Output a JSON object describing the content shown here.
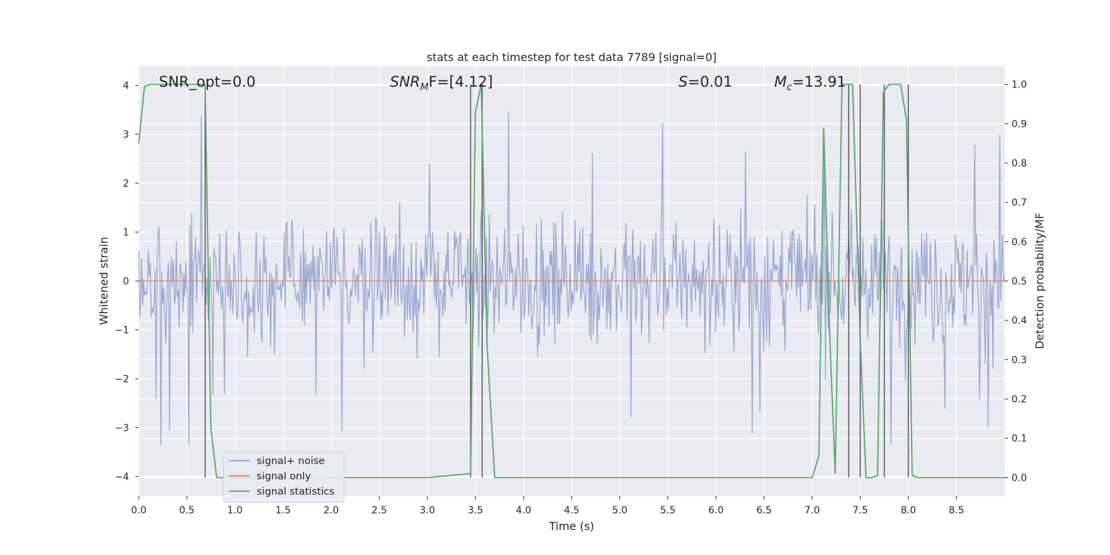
{
  "chart_data": {
    "type": "line",
    "title": "stats at each timestep for test data 7789 [signal=0]",
    "xlabel": "Time (s)",
    "ylabel_left": "Whitened strain",
    "ylabel_right": "Detection probability/MF",
    "xlim": [
      0.0,
      9.0
    ],
    "ylim_left": [
      -4.4,
      4.4
    ],
    "ylim_right": [
      -0.047,
      1.047
    ],
    "x_ticks": [
      "0.0",
      "0.5",
      "1.0",
      "1.5",
      "2.0",
      "2.5",
      "3.0",
      "3.5",
      "4.0",
      "4.5",
      "5.0",
      "5.5",
      "6.0",
      "6.5",
      "7.0",
      "7.5",
      "8.0",
      "8.5"
    ],
    "y_left_ticks": [
      "4",
      "3",
      "2",
      "1",
      "0",
      "−1",
      "−2",
      "−3",
      "−4"
    ],
    "y_right_ticks": [
      "1.0",
      "0.9",
      "0.8",
      "0.7",
      "0.6",
      "0.5",
      "0.4",
      "0.3",
      "0.2",
      "0.1",
      "0.0"
    ],
    "grid": true,
    "legend_position": "lower-left",
    "annotations": {
      "snr_opt": "SNR_opt=0.0",
      "snr_mf_prefix": "SNR",
      "snr_mf_sub": "M",
      "snr_mf_rest": "F=[4.12]",
      "s_label": "S",
      "s_value": "=0.01",
      "mc_label": "M",
      "mc_sub": "c",
      "mc_value": "=13.91"
    },
    "series": [
      {
        "name": "signal+ noise",
        "color": "#8ea0cb",
        "description_range": [
          -4.0,
          4.0
        ],
        "envelope": {
          "core_abs": 1.6,
          "spike_max": 3.5,
          "samples": 900
        }
      },
      {
        "name": "signal only",
        "color": "#dd8452",
        "x": [
          0.0,
          9.0
        ],
        "y": [
          0.0,
          0.0
        ]
      },
      {
        "name": "signal statistics",
        "color": "#55a868",
        "axis": "right",
        "x": [
          0.0,
          0.06,
          0.12,
          0.2,
          0.3,
          0.4,
          0.5,
          0.6,
          0.66,
          0.69,
          0.75,
          0.81,
          0.9,
          1.0,
          2.0,
          3.0,
          3.45,
          3.5,
          3.56,
          3.62,
          3.7,
          3.8,
          4.0,
          5.0,
          6.0,
          7.0,
          7.07,
          7.12,
          7.18,
          7.24,
          7.31,
          7.36,
          7.42,
          7.5,
          7.56,
          7.62,
          7.68,
          7.74,
          7.8,
          7.86,
          7.92,
          7.98,
          8.04,
          8.1,
          8.2,
          9.0
        ],
        "y": [
          0.85,
          0.995,
          1.0,
          1.0,
          1.0,
          1.0,
          1.0,
          1.0,
          1.0,
          0.995,
          0.125,
          0.0,
          0.0,
          0.0,
          0.0,
          0.0,
          0.01,
          0.93,
          1.0,
          0.34,
          0.0,
          0.0,
          0.0,
          0.0,
          0.0,
          0.0,
          0.055,
          0.89,
          0.38,
          0.01,
          1.0,
          1.0,
          1.0,
          0.35,
          0.0,
          0.0,
          0.005,
          0.98,
          1.0,
          1.0,
          1.0,
          0.91,
          0.005,
          0.0,
          0.0,
          0.0
        ]
      }
    ],
    "vertical_lines_x": [
      0.69,
      3.45,
      3.57,
      7.38,
      7.5,
      7.75,
      8.0
    ]
  }
}
